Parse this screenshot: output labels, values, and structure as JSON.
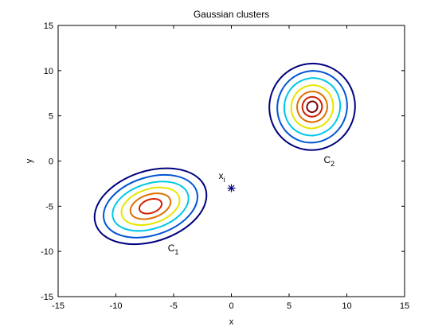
{
  "chart_data": {
    "type": "contour",
    "title": "Gaussian clusters",
    "xlabel": "x",
    "ylabel": "y",
    "xlim": [
      -15,
      15
    ],
    "ylim": [
      -15,
      15
    ],
    "xticks": [
      -15,
      -10,
      -5,
      0,
      5,
      10,
      15
    ],
    "yticks": [
      -15,
      -10,
      -5,
      0,
      5,
      10,
      15
    ],
    "grid": false,
    "legend": "none",
    "clusters": [
      {
        "label": "C",
        "subscript": "1",
        "label_at": [
          -5.5,
          -10
        ],
        "center": [
          -7,
          -5
        ],
        "contours": [
          {
            "rx": 5.0,
            "ry": 3.9,
            "tilt_deg": 18,
            "color": "#00007f"
          },
          {
            "rx": 4.2,
            "ry": 3.2,
            "tilt_deg": 18,
            "color": "#0055d4"
          },
          {
            "rx": 3.4,
            "ry": 2.5,
            "tilt_deg": 18,
            "color": "#00c8e6"
          },
          {
            "rx": 2.6,
            "ry": 1.9,
            "tilt_deg": 18,
            "color": "#e6e600"
          },
          {
            "rx": 1.8,
            "ry": 1.3,
            "tilt_deg": 18,
            "color": "#e07000"
          },
          {
            "rx": 1.0,
            "ry": 0.75,
            "tilt_deg": 18,
            "color": "#d21e00"
          }
        ]
      },
      {
        "label": "C",
        "subscript": "2",
        "label_at": [
          8,
          -0.2
        ],
        "center": [
          7,
          6
        ],
        "contours": [
          {
            "rx": 3.7,
            "ry": 4.8,
            "tilt_deg": -25,
            "color": "#00007f"
          },
          {
            "rx": 3.0,
            "ry": 4.0,
            "tilt_deg": -25,
            "color": "#0055d4"
          },
          {
            "rx": 2.4,
            "ry": 3.2,
            "tilt_deg": -25,
            "color": "#00c8e6"
          },
          {
            "rx": 1.8,
            "ry": 2.4,
            "tilt_deg": -25,
            "color": "#e6e600"
          },
          {
            "rx": 1.3,
            "ry": 1.7,
            "tilt_deg": -25,
            "color": "#e07000"
          },
          {
            "rx": 0.85,
            "ry": 1.1,
            "tilt_deg": -25,
            "color": "#d21e00"
          },
          {
            "rx": 0.45,
            "ry": 0.6,
            "tilt_deg": -25,
            "color": "#7f0000"
          }
        ]
      }
    ],
    "point": {
      "x": 0,
      "y": -3,
      "label": "x",
      "subscript": "i",
      "label_at": [
        -1.1,
        -2.0
      ],
      "marker": "asterisk",
      "color": "#00007f"
    }
  }
}
